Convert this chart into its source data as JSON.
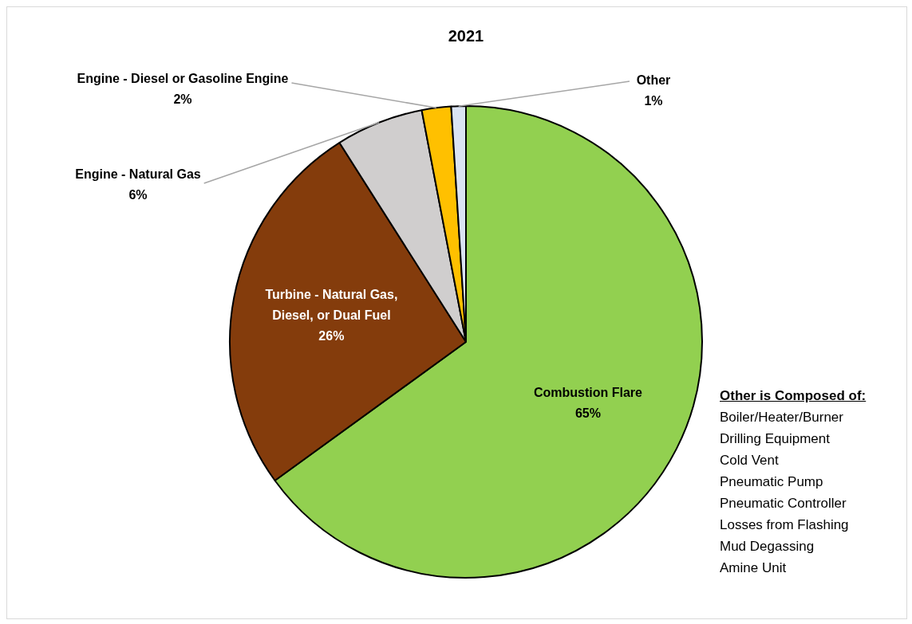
{
  "chart_data": {
    "type": "pie",
    "title": "2021",
    "categories": [
      "Combustion Flare",
      "Turbine - Natural Gas, Diesel, or Dual Fuel",
      "Engine - Natural Gas",
      "Engine - Diesel or Gasoline Engine",
      "Other"
    ],
    "values": [
      65,
      26,
      6,
      2,
      1
    ],
    "colors": [
      "#92d050",
      "#843c0c",
      "#d0cece",
      "#ffc000",
      "#dae3f3"
    ],
    "value_labels": [
      "65%",
      "26%",
      "6%",
      "2%",
      "1%"
    ],
    "annotations": [
      "Other is Composed of:",
      "Boiler/Heater/Burner",
      "Drilling Equipment",
      "Cold Vent",
      "Pneumatic Pump",
      "Pneumatic Controller",
      "Losses from Flashing",
      "Mud Degassing",
      "Amine Unit"
    ]
  }
}
